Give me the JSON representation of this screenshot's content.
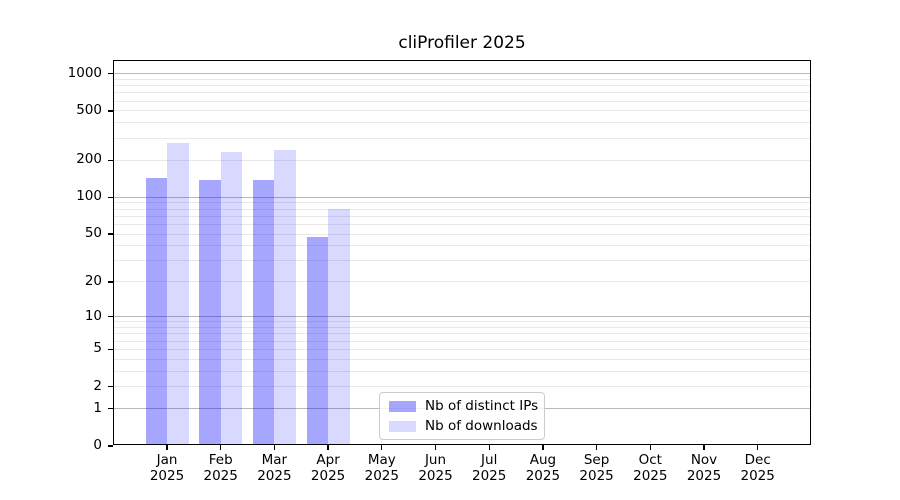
{
  "title": "cliProfiler 2025",
  "colors": {
    "bar_distinct_ips": "rgba(0,0,255,0.35)",
    "bar_downloads": "rgba(0,0,255,0.15)",
    "grid_major": "#b9b9b9",
    "grid_minor": "#e9e9e9",
    "axis": "#000000",
    "legend_border": "#cccccc"
  },
  "chart_data": {
    "type": "bar",
    "title": "cliProfiler 2025",
    "categories": [
      "Jan",
      "Feb",
      "Mar",
      "Apr",
      "May",
      "Jun",
      "Jul",
      "Aug",
      "Sep",
      "Oct",
      "Nov",
      "Dec"
    ],
    "category_year": "2025",
    "series": [
      {
        "name": "Nb of distinct IPs",
        "key": "distinct-ips",
        "values": [
          138,
          134,
          134,
          46,
          0,
          0,
          0,
          0,
          0,
          0,
          0,
          0
        ]
      },
      {
        "name": "Nb of downloads",
        "key": "downloads",
        "values": [
          265,
          223,
          234,
          78,
          0,
          0,
          0,
          0,
          0,
          0,
          0,
          0
        ]
      }
    ],
    "yticks": [
      1000,
      500,
      200,
      100,
      50,
      20,
      10,
      5,
      2,
      1,
      0
    ],
    "ylim": [
      0,
      1000
    ],
    "yscale": "symlog ln(1+v)",
    "grid": true,
    "legend_position": "lower center-left"
  },
  "legend": {
    "items": [
      "Nb of distinct IPs",
      "Nb of downloads"
    ]
  }
}
